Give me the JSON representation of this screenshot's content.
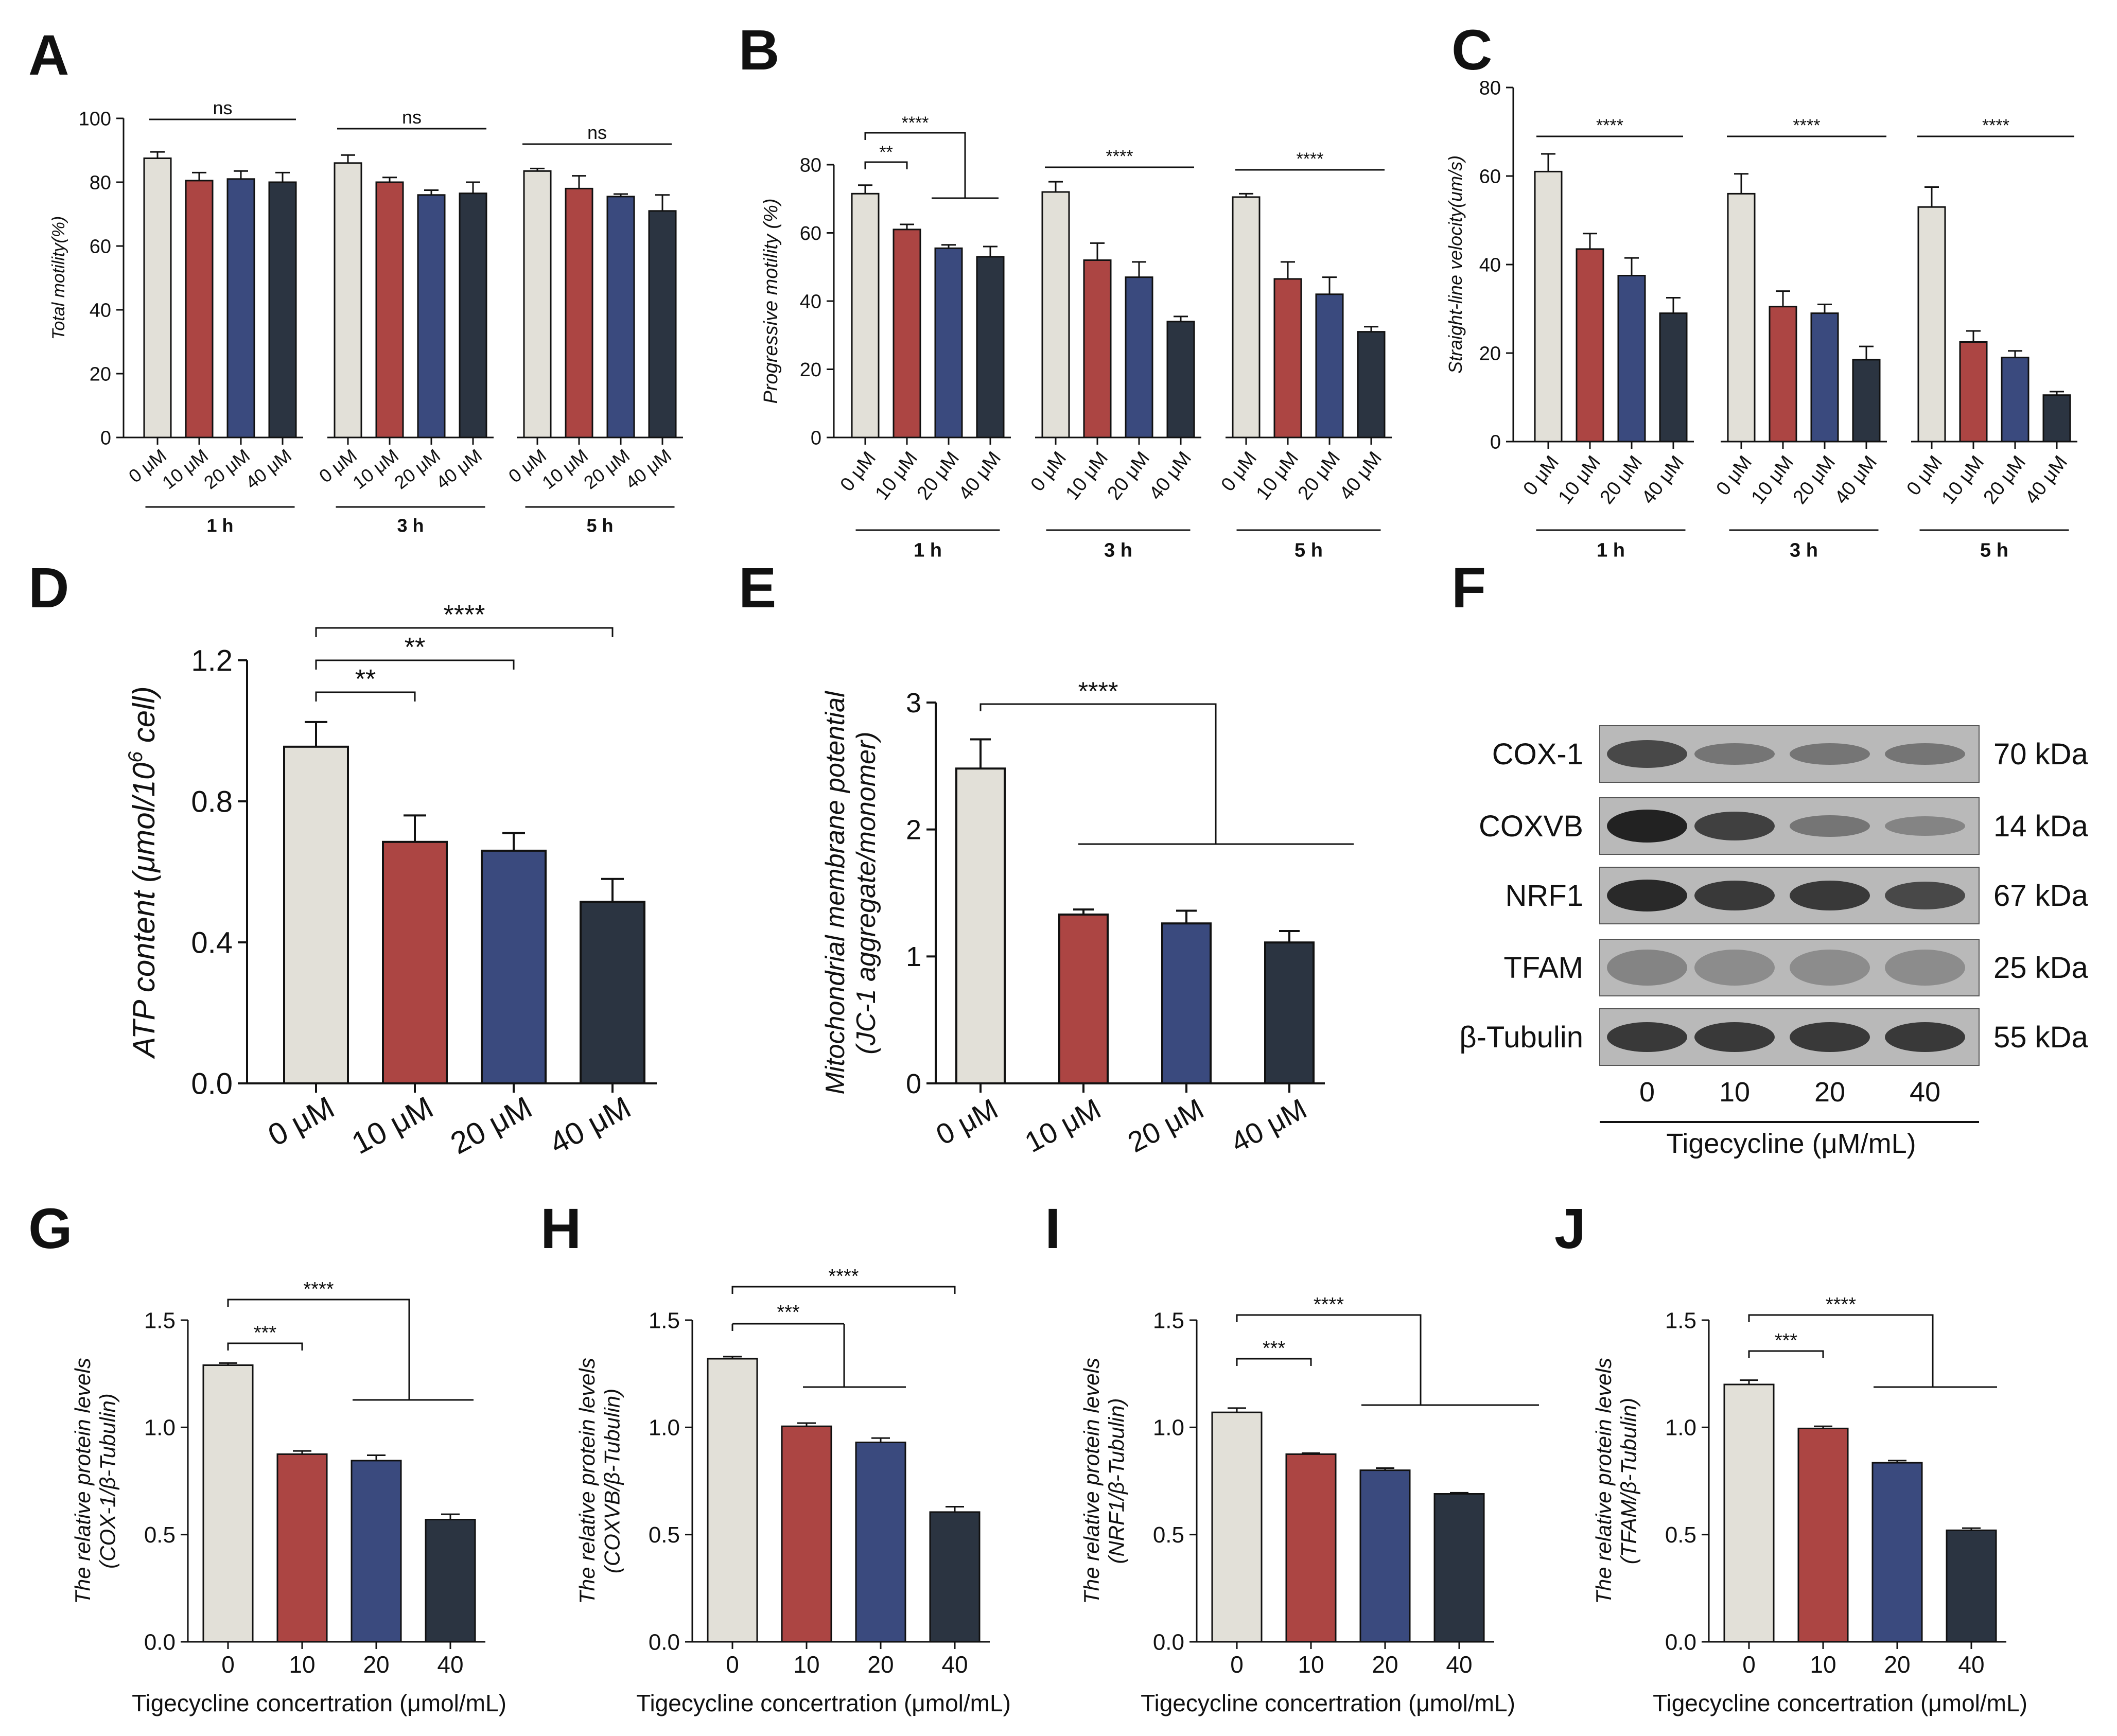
{
  "figure": {
    "panels": [
      "A",
      "B",
      "C",
      "D",
      "E",
      "F",
      "G",
      "H",
      "I",
      "J"
    ]
  },
  "colors": {
    "control": "#e2e0d8",
    "uM10": "#ac4543",
    "uM20": "#3a4a7e",
    "uM40": "#2b3441",
    "axis": "#111111"
  },
  "chart_data": [
    {
      "panel": "A",
      "type": "bar",
      "ylabel": "Total motility(%)",
      "ylim": [
        0,
        100
      ],
      "yticks": [
        0,
        20,
        40,
        60,
        80,
        100
      ],
      "group_labels": [
        "1 h",
        "3 h",
        "5 h"
      ],
      "categories": [
        "0 μM",
        "10 μM",
        "20 μM",
        "40 μM"
      ],
      "values": [
        [
          87.5,
          80.5,
          81,
          80
        ],
        [
          86,
          80,
          76,
          76.5
        ],
        [
          83.5,
          78,
          75.5,
          71
        ]
      ],
      "errors": [
        [
          2,
          2.5,
          2.5,
          3
        ],
        [
          2.5,
          1.5,
          1.5,
          3.5
        ],
        [
          0.8,
          4,
          0.8,
          5
        ]
      ],
      "significance": [
        "ns",
        "ns",
        "ns"
      ]
    },
    {
      "panel": "B",
      "type": "bar",
      "ylabel": "Progressive motility (%)",
      "ylim": [
        0,
        80
      ],
      "yticks": [
        0,
        20,
        40,
        60,
        80
      ],
      "group_labels": [
        "1 h",
        "3 h",
        "5 h"
      ],
      "categories": [
        "0 μM",
        "10 μM",
        "20 μM",
        "40 μM"
      ],
      "values": [
        [
          71.5,
          61,
          55.5,
          53
        ],
        [
          72,
          52,
          47,
          34
        ],
        [
          70.5,
          46.5,
          42,
          31
        ]
      ],
      "errors": [
        [
          2.5,
          1.5,
          1,
          3
        ],
        [
          3,
          5,
          4.5,
          1.5
        ],
        [
          1,
          5,
          5,
          1.5
        ]
      ],
      "significance": [
        "**",
        "****",
        "****",
        "****"
      ]
    },
    {
      "panel": "C",
      "type": "bar",
      "ylabel": "Straight-line velocity(um/s)",
      "ylim": [
        0,
        80
      ],
      "yticks": [
        0,
        20,
        40,
        60,
        80
      ],
      "group_labels": [
        "1 h",
        "3 h",
        "5 h"
      ],
      "categories": [
        "0 μM",
        "10 μM",
        "20 μM",
        "40 μM"
      ],
      "values": [
        [
          61,
          43.5,
          37.5,
          29
        ],
        [
          56,
          30.5,
          29,
          18.5
        ],
        [
          53,
          22.5,
          19,
          10.5
        ]
      ],
      "errors": [
        [
          4,
          3.5,
          4,
          3.5
        ],
        [
          4.5,
          3.5,
          2,
          3
        ],
        [
          4.5,
          2.5,
          1.5,
          0.8
        ]
      ],
      "significance": [
        "****",
        "****",
        "****"
      ]
    },
    {
      "panel": "D",
      "type": "bar",
      "ylabel": "ATP content (μmol/10",
      "ylabel_sup": "6",
      "ylabel_tail": " cell)",
      "ylim": [
        0,
        1.2
      ],
      "yticks": [
        "0.0",
        "0.4",
        "0.8",
        "1.2"
      ],
      "categories": [
        "0 μM",
        "10 μM",
        "20 μM",
        "40 μM"
      ],
      "values": [
        0.955,
        0.685,
        0.66,
        0.515
      ],
      "errors": [
        0.07,
        0.075,
        0.05,
        0.065
      ],
      "significance": [
        "**",
        "**",
        "****"
      ]
    },
    {
      "panel": "E",
      "type": "bar",
      "ylabel": "Mitochondrial membrane potential",
      "ylabel2": "(JC-1 aggregate/monomer)",
      "ylim": [
        0,
        3
      ],
      "yticks": [
        "0",
        "1",
        "2",
        "3"
      ],
      "categories": [
        "0 μM",
        "10 μM",
        "20 μM",
        "40 μM"
      ],
      "values": [
        2.48,
        1.33,
        1.26,
        1.11
      ],
      "errors": [
        0.23,
        0.04,
        0.1,
        0.09
      ],
      "significance": [
        "****"
      ]
    },
    {
      "panel": "G",
      "type": "bar",
      "ylabel": "The relative protein levels",
      "ylabel2": "(COX-1/β-Tubulin)",
      "xlabel": "Tigecycline concertration (μmol/mL)",
      "ylim": [
        0,
        1.5
      ],
      "yticks": [
        "0.0",
        "0.5",
        "1.0",
        "1.5"
      ],
      "categories": [
        "0",
        "10",
        "20",
        "40"
      ],
      "values": [
        1.29,
        0.875,
        0.845,
        0.57
      ],
      "errors": [
        0.01,
        0.015,
        0.025,
        0.025
      ],
      "significance": [
        "***",
        "****"
      ]
    },
    {
      "panel": "H",
      "type": "bar",
      "ylabel": "The relative protein levels",
      "ylabel2": "(COXVB/β-Tubulin)",
      "xlabel": "Tigecycline concertration (μmol/mL)",
      "ylim": [
        0,
        1.5
      ],
      "yticks": [
        "0.0",
        "0.5",
        "1.0",
        "1.5"
      ],
      "categories": [
        "0",
        "10",
        "20",
        "40"
      ],
      "values": [
        1.32,
        1.005,
        0.93,
        0.605
      ],
      "errors": [
        0.01,
        0.015,
        0.02,
        0.025
      ],
      "significance": [
        "***",
        "****"
      ]
    },
    {
      "panel": "I",
      "type": "bar",
      "ylabel": "The relative protein levels",
      "ylabel2": "(NRF1/β-Tubulin)",
      "xlabel": "Tigecycline concertration (μmol/mL)",
      "ylim": [
        0,
        1.5
      ],
      "yticks": [
        "0.0",
        "0.5",
        "1.0",
        "1.5"
      ],
      "categories": [
        "0",
        "10",
        "20",
        "40"
      ],
      "values": [
        1.07,
        0.875,
        0.8,
        0.69
      ],
      "errors": [
        0.02,
        0.005,
        0.01,
        0.005
      ],
      "significance": [
        "***",
        "****"
      ]
    },
    {
      "panel": "J",
      "type": "bar",
      "ylabel": "The relative protein levels",
      "ylabel2": "(TFAM/β-Tubulin)",
      "xlabel": "Tigecycline concertration (μmol/mL)",
      "ylim": [
        0,
        1.5
      ],
      "yticks": [
        "0.0",
        "0.5",
        "1.0",
        "1.5"
      ],
      "categories": [
        "0",
        "10",
        "20",
        "40"
      ],
      "values": [
        1.2,
        0.995,
        0.835,
        0.52
      ],
      "errors": [
        0.02,
        0.01,
        0.01,
        0.01
      ],
      "significance": [
        "***",
        "****"
      ]
    }
  ],
  "blot": {
    "panel": "F",
    "proteins": [
      "COX-1",
      "COXVB",
      "NRF1",
      "TFAM",
      "β-Tubulin"
    ],
    "sizes": [
      "70 kDa",
      "14 kDa",
      "67 kDa",
      "25 kDa",
      "55 kDa"
    ],
    "lanes": [
      "0",
      "10",
      "20",
      "40"
    ],
    "xlabel": "Tigecycline (μM/mL)",
    "band_intensity": [
      [
        0.75,
        0.45,
        0.45,
        0.45
      ],
      [
        1.0,
        0.8,
        0.45,
        0.35
      ],
      [
        0.95,
        0.85,
        0.85,
        0.75
      ],
      [
        0.35,
        0.3,
        0.3,
        0.3
      ],
      [
        0.85,
        0.85,
        0.85,
        0.85
      ]
    ]
  }
}
